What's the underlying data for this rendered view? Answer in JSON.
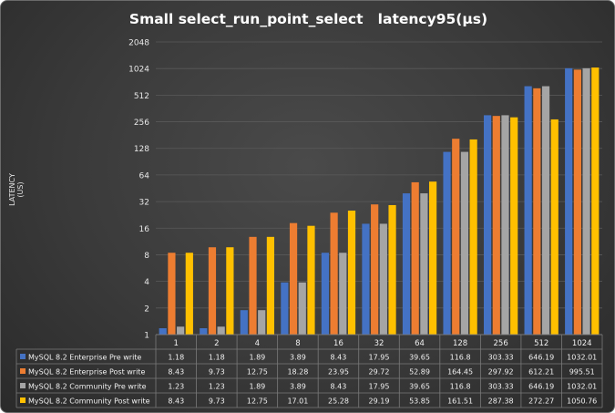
{
  "chart_data": {
    "type": "bar",
    "title": "Small select_run_point_select   latency95(µs)",
    "ylabel": "LATENCY (US)",
    "xlabel": "",
    "y_scale": "log2",
    "ylim": [
      1,
      2048
    ],
    "y_ticks": [
      "1",
      "2",
      "4",
      "8",
      "16",
      "32",
      "64",
      "128",
      "256",
      "512",
      "1024",
      "2048"
    ],
    "grid": true,
    "legend": "data-table-below",
    "categories": [
      "1",
      "2",
      "4",
      "8",
      "16",
      "32",
      "64",
      "128",
      "256",
      "512",
      "1024"
    ],
    "series": [
      {
        "name": "MySQL 8.2 Enterprise Pre write",
        "color": "#4472c4",
        "values": [
          1.18,
          1.18,
          1.89,
          3.89,
          8.43,
          17.95,
          39.65,
          116.8,
          303.33,
          646.19,
          1032.01
        ]
      },
      {
        "name": "MySQL 8.2 Enterprise Post write",
        "color": "#ed7d31",
        "values": [
          8.43,
          9.73,
          12.75,
          18.28,
          23.95,
          29.72,
          52.89,
          164.45,
          297.92,
          612.21,
          995.51
        ]
      },
      {
        "name": "MySQL 8.2 Community Pre write",
        "color": "#a5a5a5",
        "values": [
          1.23,
          1.23,
          1.89,
          3.89,
          8.43,
          17.95,
          39.65,
          116.8,
          303.33,
          646.19,
          1032.01
        ]
      },
      {
        "name": "MySQL 8.2 Community Post write",
        "color": "#ffc000",
        "values": [
          8.43,
          9.73,
          12.75,
          17.01,
          25.28,
          29.19,
          53.85,
          161.51,
          287.38,
          272.27,
          1050.76
        ]
      }
    ]
  }
}
